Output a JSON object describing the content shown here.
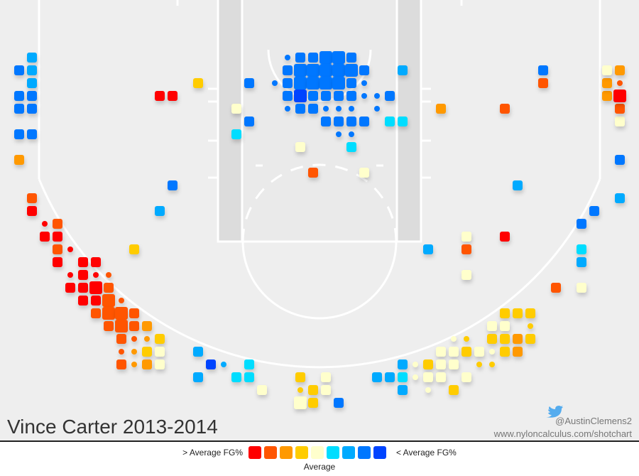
{
  "chart_data": {
    "type": "shot-chart",
    "title": "Vince Carter 2013-2014",
    "credit": "@AustinClemens2",
    "source": "www.nyloncalculus.com/shotchart",
    "legend": {
      "left": "> Average FG%",
      "right": "< Average FG%",
      "center": "Average",
      "colors": [
        "#ff0000",
        "#ff5500",
        "#ff9900",
        "#ffcc00",
        "#ffffcc",
        "#00ddff",
        "#00aaff",
        "#0077ff",
        "#0044ff"
      ]
    },
    "xlim": [
      -25,
      25
    ],
    "ylim": [
      0,
      34.5
    ],
    "shots": [
      {
        "x": -22.5,
        "y": 4.5,
        "n": 2,
        "bin": 6
      },
      {
        "x": -23.5,
        "y": 5.5,
        "n": 2,
        "bin": 7
      },
      {
        "x": -22.5,
        "y": 5.5,
        "n": 2,
        "bin": 6
      },
      {
        "x": -22.5,
        "y": 6.5,
        "n": 2,
        "bin": 6
      },
      {
        "x": -23.5,
        "y": 7.5,
        "n": 2,
        "bin": 7
      },
      {
        "x": -22.5,
        "y": 7.5,
        "n": 2,
        "bin": 7
      },
      {
        "x": -23.5,
        "y": 8.5,
        "n": 2,
        "bin": 7
      },
      {
        "x": -22.5,
        "y": 8.5,
        "n": 2,
        "bin": 7
      },
      {
        "x": -23.5,
        "y": 10.5,
        "n": 2,
        "bin": 7
      },
      {
        "x": -22.5,
        "y": 10.5,
        "n": 2,
        "bin": 7
      },
      {
        "x": -23.5,
        "y": 12.5,
        "n": 2,
        "bin": 2
      },
      {
        "x": -22.5,
        "y": 15.5,
        "n": 2,
        "bin": 1
      },
      {
        "x": -22.5,
        "y": 16.5,
        "n": 2,
        "bin": 0
      },
      {
        "x": -20.5,
        "y": 17.5,
        "n": 2,
        "bin": 1
      },
      {
        "x": -21.5,
        "y": 17.5,
        "n": 1,
        "bin": 0
      },
      {
        "x": -21.5,
        "y": 18.5,
        "n": 2,
        "bin": 0
      },
      {
        "x": -20.5,
        "y": 18.5,
        "n": 2,
        "bin": 0
      },
      {
        "x": -20.5,
        "y": 19.5,
        "n": 2,
        "bin": 1
      },
      {
        "x": -19.5,
        "y": 19.5,
        "n": 1,
        "bin": 0
      },
      {
        "x": -20.5,
        "y": 20.5,
        "n": 2,
        "bin": 0
      },
      {
        "x": -18.5,
        "y": 20.5,
        "n": 2,
        "bin": 0
      },
      {
        "x": -17.5,
        "y": 20.5,
        "n": 2,
        "bin": 0
      },
      {
        "x": -19.5,
        "y": 21.5,
        "n": 1,
        "bin": 0
      },
      {
        "x": -18.5,
        "y": 21.5,
        "n": 2,
        "bin": 0
      },
      {
        "x": -17.5,
        "y": 21.5,
        "n": 1,
        "bin": 0
      },
      {
        "x": -16.5,
        "y": 21.5,
        "n": 1,
        "bin": 1
      },
      {
        "x": -19.5,
        "y": 22.5,
        "n": 2,
        "bin": 0
      },
      {
        "x": -18.5,
        "y": 22.5,
        "n": 2,
        "bin": 0
      },
      {
        "x": -17.5,
        "y": 22.5,
        "n": 3,
        "bin": 0
      },
      {
        "x": -16.5,
        "y": 22.5,
        "n": 2,
        "bin": 1
      },
      {
        "x": -18.5,
        "y": 23.5,
        "n": 2,
        "bin": 0
      },
      {
        "x": -17.5,
        "y": 23.5,
        "n": 2,
        "bin": 0
      },
      {
        "x": -16.5,
        "y": 23.5,
        "n": 3,
        "bin": 1
      },
      {
        "x": -15.5,
        "y": 23.5,
        "n": 1,
        "bin": 1
      },
      {
        "x": -17.5,
        "y": 24.5,
        "n": 2,
        "bin": 1
      },
      {
        "x": -16.5,
        "y": 24.5,
        "n": 3,
        "bin": 1
      },
      {
        "x": -15.5,
        "y": 24.5,
        "n": 3,
        "bin": 1
      },
      {
        "x": -14.5,
        "y": 24.5,
        "n": 2,
        "bin": 1
      },
      {
        "x": -16.5,
        "y": 25.5,
        "n": 2,
        "bin": 1
      },
      {
        "x": -15.5,
        "y": 25.5,
        "n": 3,
        "bin": 1
      },
      {
        "x": -14.5,
        "y": 25.5,
        "n": 2,
        "bin": 1
      },
      {
        "x": -13.5,
        "y": 25.5,
        "n": 2,
        "bin": 2
      },
      {
        "x": -15.5,
        "y": 26.5,
        "n": 2,
        "bin": 1
      },
      {
        "x": -14.5,
        "y": 26.5,
        "n": 1,
        "bin": 1
      },
      {
        "x": -13.5,
        "y": 26.5,
        "n": 1,
        "bin": 2
      },
      {
        "x": -12.5,
        "y": 26.5,
        "n": 2,
        "bin": 3
      },
      {
        "x": -15.5,
        "y": 27.5,
        "n": 1,
        "bin": 1
      },
      {
        "x": -14.5,
        "y": 27.5,
        "n": 1,
        "bin": 2
      },
      {
        "x": -13.5,
        "y": 27.5,
        "n": 2,
        "bin": 3
      },
      {
        "x": -12.5,
        "y": 27.5,
        "n": 2,
        "bin": 4
      },
      {
        "x": -15.5,
        "y": 28.5,
        "n": 2,
        "bin": 1
      },
      {
        "x": -14.5,
        "y": 28.5,
        "n": 1,
        "bin": 2
      },
      {
        "x": -13.5,
        "y": 28.5,
        "n": 2,
        "bin": 2
      },
      {
        "x": -12.5,
        "y": 28.5,
        "n": 2,
        "bin": 4
      },
      {
        "x": -14.5,
        "y": 19.5,
        "n": 2,
        "bin": 3
      },
      {
        "x": -12.5,
        "y": 7.5,
        "n": 2,
        "bin": 0
      },
      {
        "x": -11.5,
        "y": 7.5,
        "n": 2,
        "bin": 0
      },
      {
        "x": -9.5,
        "y": 6.5,
        "n": 2,
        "bin": 3
      },
      {
        "x": -11.5,
        "y": 14.5,
        "n": 2,
        "bin": 7
      },
      {
        "x": -12.5,
        "y": 16.5,
        "n": 2,
        "bin": 6
      },
      {
        "x": -9.5,
        "y": 27.5,
        "n": 2,
        "bin": 6
      },
      {
        "x": -8.5,
        "y": 28.5,
        "n": 2,
        "bin": 8
      },
      {
        "x": -7.5,
        "y": 28.5,
        "n": 1,
        "bin": 6
      },
      {
        "x": -5.5,
        "y": 28.5,
        "n": 2,
        "bin": 5
      },
      {
        "x": -9.5,
        "y": 29.5,
        "n": 2,
        "bin": 6
      },
      {
        "x": -6.5,
        "y": 29.5,
        "n": 2,
        "bin": 5
      },
      {
        "x": -5.5,
        "y": 29.5,
        "n": 2,
        "bin": 5
      },
      {
        "x": -4.5,
        "y": 30.5,
        "n": 2,
        "bin": 4
      },
      {
        "x": -1.5,
        "y": 29.5,
        "n": 2,
        "bin": 3
      },
      {
        "x": 0.5,
        "y": 29.5,
        "n": 2,
        "bin": 4
      },
      {
        "x": -1.5,
        "y": 30.5,
        "n": 1,
        "bin": 3
      },
      {
        "x": -0.5,
        "y": 30.5,
        "n": 2,
        "bin": 3
      },
      {
        "x": 0.5,
        "y": 30.5,
        "n": 2,
        "bin": 4
      },
      {
        "x": -1.5,
        "y": 31.5,
        "n": 3,
        "bin": 4
      },
      {
        "x": -0.5,
        "y": 31.5,
        "n": 2,
        "bin": 3
      },
      {
        "x": 1.5,
        "y": 31.5,
        "n": 2,
        "bin": 7
      },
      {
        "x": -2.5,
        "y": 4.5,
        "n": 1,
        "bin": 7
      },
      {
        "x": -1.5,
        "y": 4.5,
        "n": 2,
        "bin": 7
      },
      {
        "x": -0.5,
        "y": 4.5,
        "n": 2,
        "bin": 7
      },
      {
        "x": 0.5,
        "y": 4.5,
        "n": 3,
        "bin": 7
      },
      {
        "x": 1.5,
        "y": 4.5,
        "n": 3,
        "bin": 7
      },
      {
        "x": 2.5,
        "y": 4.5,
        "n": 2,
        "bin": 7
      },
      {
        "x": -2.5,
        "y": 5.5,
        "n": 2,
        "bin": 7
      },
      {
        "x": -1.5,
        "y": 5.5,
        "n": 3,
        "bin": 7
      },
      {
        "x": -0.5,
        "y": 5.5,
        "n": 3,
        "bin": 7
      },
      {
        "x": 0.5,
        "y": 5.5,
        "n": 3,
        "bin": 7
      },
      {
        "x": 1.5,
        "y": 5.5,
        "n": 3,
        "bin": 7
      },
      {
        "x": 2.5,
        "y": 5.5,
        "n": 3,
        "bin": 7
      },
      {
        "x": 3.5,
        "y": 5.5,
        "n": 2,
        "bin": 7
      },
      {
        "x": -3.5,
        "y": 6.5,
        "n": 1,
        "bin": 7
      },
      {
        "x": -2.5,
        "y": 6.5,
        "n": 2,
        "bin": 7
      },
      {
        "x": -1.5,
        "y": 6.5,
        "n": 3,
        "bin": 7
      },
      {
        "x": -0.5,
        "y": 6.5,
        "n": 3,
        "bin": 7
      },
      {
        "x": 0.5,
        "y": 6.5,
        "n": 3,
        "bin": 7
      },
      {
        "x": 1.5,
        "y": 6.5,
        "n": 3,
        "bin": 7
      },
      {
        "x": 2.5,
        "y": 6.5,
        "n": 2,
        "bin": 7
      },
      {
        "x": 3.5,
        "y": 6.5,
        "n": 1,
        "bin": 7
      },
      {
        "x": -2.5,
        "y": 7.5,
        "n": 2,
        "bin": 7
      },
      {
        "x": -1.5,
        "y": 7.5,
        "n": 3,
        "bin": 8
      },
      {
        "x": -0.5,
        "y": 7.5,
        "n": 2,
        "bin": 7
      },
      {
        "x": 0.5,
        "y": 7.5,
        "n": 2,
        "bin": 7
      },
      {
        "x": 1.5,
        "y": 7.5,
        "n": 2,
        "bin": 7
      },
      {
        "x": 2.5,
        "y": 7.5,
        "n": 2,
        "bin": 7
      },
      {
        "x": 3.5,
        "y": 7.5,
        "n": 1,
        "bin": 7
      },
      {
        "x": 4.5,
        "y": 7.5,
        "n": 1,
        "bin": 7
      },
      {
        "x": 5.5,
        "y": 7.5,
        "n": 2,
        "bin": 7
      },
      {
        "x": -2.5,
        "y": 8.5,
        "n": 1,
        "bin": 7
      },
      {
        "x": -1.5,
        "y": 8.5,
        "n": 2,
        "bin": 7
      },
      {
        "x": -0.5,
        "y": 8.5,
        "n": 2,
        "bin": 7
      },
      {
        "x": 0.5,
        "y": 8.5,
        "n": 1,
        "bin": 7
      },
      {
        "x": 1.5,
        "y": 8.5,
        "n": 1,
        "bin": 7
      },
      {
        "x": 2.5,
        "y": 8.5,
        "n": 1,
        "bin": 7
      },
      {
        "x": 4.5,
        "y": 8.5,
        "n": 1,
        "bin": 7
      },
      {
        "x": 0.5,
        "y": 9.5,
        "n": 2,
        "bin": 7
      },
      {
        "x": 1.5,
        "y": 9.5,
        "n": 2,
        "bin": 7
      },
      {
        "x": 2.5,
        "y": 9.5,
        "n": 2,
        "bin": 7
      },
      {
        "x": 3.5,
        "y": 9.5,
        "n": 2,
        "bin": 7
      },
      {
        "x": 5.5,
        "y": 9.5,
        "n": 2,
        "bin": 5
      },
      {
        "x": 6.5,
        "y": 9.5,
        "n": 2,
        "bin": 5
      },
      {
        "x": 1.5,
        "y": 10.5,
        "n": 1,
        "bin": 7
      },
      {
        "x": 2.5,
        "y": 10.5,
        "n": 1,
        "bin": 7
      },
      {
        "x": 2.5,
        "y": 11.5,
        "n": 2,
        "bin": 5
      },
      {
        "x": -1.5,
        "y": 11.5,
        "n": 2,
        "bin": 4
      },
      {
        "x": -0.5,
        "y": 13.5,
        "n": 2,
        "bin": 1
      },
      {
        "x": 3.5,
        "y": 13.5,
        "n": 2,
        "bin": 4
      },
      {
        "x": -6.5,
        "y": 8.5,
        "n": 2,
        "bin": 4
      },
      {
        "x": -5.5,
        "y": 9.5,
        "n": 2,
        "bin": 7
      },
      {
        "x": -6.5,
        "y": 10.5,
        "n": 2,
        "bin": 5
      },
      {
        "x": -5.5,
        "y": 6.5,
        "n": 2,
        "bin": 7
      },
      {
        "x": 6.5,
        "y": 5.5,
        "n": 2,
        "bin": 6
      },
      {
        "x": 9.5,
        "y": 8.5,
        "n": 2,
        "bin": 2
      },
      {
        "x": 14.5,
        "y": 8.5,
        "n": 2,
        "bin": 1
      },
      {
        "x": 17.5,
        "y": 5.5,
        "n": 2,
        "bin": 7
      },
      {
        "x": 17.5,
        "y": 6.5,
        "n": 2,
        "bin": 1
      },
      {
        "x": 15.5,
        "y": 14.5,
        "n": 2,
        "bin": 6
      },
      {
        "x": 14.5,
        "y": 18.5,
        "n": 2,
        "bin": 0
      },
      {
        "x": 11.5,
        "y": 18.5,
        "n": 2,
        "bin": 4
      },
      {
        "x": 11.5,
        "y": 19.5,
        "n": 2,
        "bin": 1
      },
      {
        "x": 8.5,
        "y": 19.5,
        "n": 2,
        "bin": 6
      },
      {
        "x": 11.5,
        "y": 21.5,
        "n": 2,
        "bin": 4
      },
      {
        "x": 18.5,
        "y": 22.5,
        "n": 2,
        "bin": 1
      },
      {
        "x": 20.5,
        "y": 22.5,
        "n": 2,
        "bin": 4
      },
      {
        "x": 20.5,
        "y": 19.5,
        "n": 2,
        "bin": 5
      },
      {
        "x": 20.5,
        "y": 20.5,
        "n": 2,
        "bin": 6
      },
      {
        "x": 20.5,
        "y": 17.5,
        "n": 2,
        "bin": 7
      },
      {
        "x": 21.5,
        "y": 16.5,
        "n": 2,
        "bin": 7
      },
      {
        "x": 23.5,
        "y": 15.5,
        "n": 2,
        "bin": 6
      },
      {
        "x": 23.5,
        "y": 12.5,
        "n": 2,
        "bin": 7
      },
      {
        "x": 23.5,
        "y": 9.5,
        "n": 2,
        "bin": 4
      },
      {
        "x": 23.5,
        "y": 8.5,
        "n": 2,
        "bin": 1
      },
      {
        "x": 22.5,
        "y": 7.5,
        "n": 2,
        "bin": 2
      },
      {
        "x": 23.5,
        "y": 7.5,
        "n": 3,
        "bin": 0
      },
      {
        "x": 22.5,
        "y": 6.5,
        "n": 2,
        "bin": 2
      },
      {
        "x": 23.5,
        "y": 6.5,
        "n": 1,
        "bin": 1
      },
      {
        "x": 22.5,
        "y": 5.5,
        "n": 2,
        "bin": 4
      },
      {
        "x": 23.5,
        "y": 5.5,
        "n": 2,
        "bin": 2
      },
      {
        "x": 14.5,
        "y": 24.5,
        "n": 2,
        "bin": 3
      },
      {
        "x": 15.5,
        "y": 24.5,
        "n": 2,
        "bin": 3
      },
      {
        "x": 16.5,
        "y": 24.5,
        "n": 2,
        "bin": 3
      },
      {
        "x": 13.5,
        "y": 25.5,
        "n": 2,
        "bin": 4
      },
      {
        "x": 14.5,
        "y": 25.5,
        "n": 2,
        "bin": 4
      },
      {
        "x": 16.5,
        "y": 25.5,
        "n": 1,
        "bin": 3
      },
      {
        "x": 10.5,
        "y": 26.5,
        "n": 1,
        "bin": 4
      },
      {
        "x": 11.5,
        "y": 26.5,
        "n": 1,
        "bin": 3
      },
      {
        "x": 13.5,
        "y": 26.5,
        "n": 2,
        "bin": 3
      },
      {
        "x": 14.5,
        "y": 26.5,
        "n": 2,
        "bin": 3
      },
      {
        "x": 15.5,
        "y": 26.5,
        "n": 2,
        "bin": 2
      },
      {
        "x": 16.5,
        "y": 26.5,
        "n": 2,
        "bin": 3
      },
      {
        "x": 9.5,
        "y": 27.5,
        "n": 2,
        "bin": 4
      },
      {
        "x": 10.5,
        "y": 27.5,
        "n": 2,
        "bin": 4
      },
      {
        "x": 11.5,
        "y": 27.5,
        "n": 2,
        "bin": 3
      },
      {
        "x": 12.5,
        "y": 27.5,
        "n": 2,
        "bin": 4
      },
      {
        "x": 13.5,
        "y": 27.5,
        "n": 1,
        "bin": 4
      },
      {
        "x": 14.5,
        "y": 27.5,
        "n": 2,
        "bin": 3
      },
      {
        "x": 15.5,
        "y": 27.5,
        "n": 2,
        "bin": 2
      },
      {
        "x": 6.5,
        "y": 28.5,
        "n": 2,
        "bin": 6
      },
      {
        "x": 7.5,
        "y": 28.5,
        "n": 1,
        "bin": 4
      },
      {
        "x": 8.5,
        "y": 28.5,
        "n": 2,
        "bin": 3
      },
      {
        "x": 9.5,
        "y": 28.5,
        "n": 2,
        "bin": 4
      },
      {
        "x": 10.5,
        "y": 28.5,
        "n": 2,
        "bin": 4
      },
      {
        "x": 12.5,
        "y": 28.5,
        "n": 1,
        "bin": 3
      },
      {
        "x": 13.5,
        "y": 28.5,
        "n": 1,
        "bin": 3
      },
      {
        "x": 4.5,
        "y": 29.5,
        "n": 2,
        "bin": 6
      },
      {
        "x": 5.5,
        "y": 29.5,
        "n": 2,
        "bin": 6
      },
      {
        "x": 6.5,
        "y": 29.5,
        "n": 2,
        "bin": 5
      },
      {
        "x": 7.5,
        "y": 29.5,
        "n": 1,
        "bin": 4
      },
      {
        "x": 8.5,
        "y": 29.5,
        "n": 2,
        "bin": 4
      },
      {
        "x": 9.5,
        "y": 29.5,
        "n": 2,
        "bin": 4
      },
      {
        "x": 11.5,
        "y": 29.5,
        "n": 2,
        "bin": 4
      },
      {
        "x": 6.5,
        "y": 30.5,
        "n": 2,
        "bin": 6
      },
      {
        "x": 8.5,
        "y": 30.5,
        "n": 1,
        "bin": 4
      },
      {
        "x": 10.5,
        "y": 30.5,
        "n": 2,
        "bin": 3
      }
    ]
  }
}
